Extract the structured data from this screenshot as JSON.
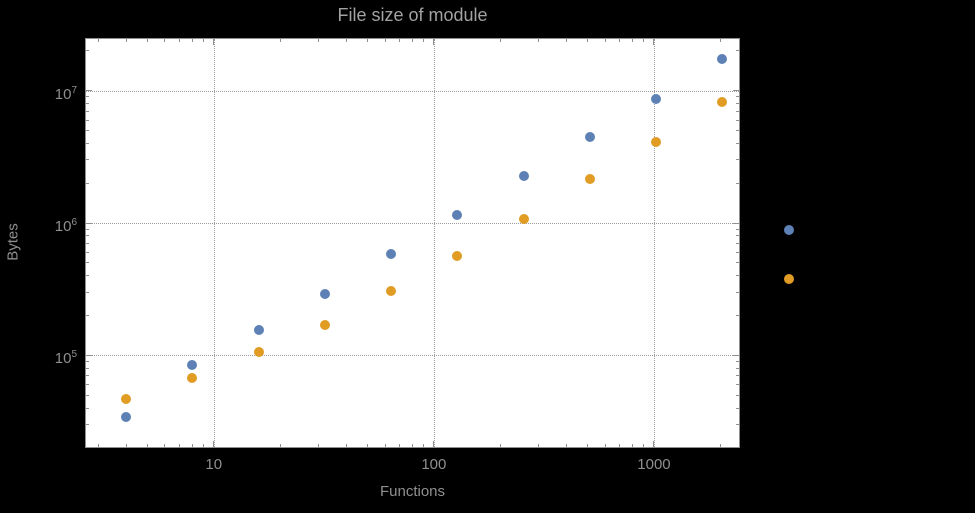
{
  "chart_data": {
    "type": "scatter",
    "title": "File size of module",
    "xlabel": "Functions",
    "ylabel": "Bytes",
    "x_scale": "log",
    "y_scale": "log",
    "xlim": [
      2.6,
      2460
    ],
    "ylim": [
      20000,
      25000000
    ],
    "grid": "dotted",
    "legend": "none",
    "x": [
      4,
      8,
      16,
      32,
      64,
      128,
      256,
      512,
      1024,
      2048,
      4096
    ],
    "series": [
      {
        "name": "series-blue",
        "color": "#5e81b5",
        "values": [
          34000,
          85000,
          155000,
          290000,
          580000,
          1150000,
          2250000,
          4500000,
          8700000,
          17500000,
          880000
        ]
      },
      {
        "name": "series-orange",
        "color": "#e19c24",
        "values": [
          47000,
          68000,
          107000,
          170000,
          305000,
          560000,
          1080000,
          2150000,
          4100000,
          8200000,
          380000
        ]
      }
    ],
    "x_ticks": [
      {
        "value": 10,
        "label": "10"
      },
      {
        "value": 100,
        "label": "100"
      },
      {
        "value": 1000,
        "label": "1000"
      }
    ],
    "y_ticks": [
      {
        "value": 100000,
        "base": "10",
        "exp": "5"
      },
      {
        "value": 1000000,
        "base": "10",
        "exp": "6"
      },
      {
        "value": 10000000,
        "base": "10",
        "exp": "7"
      }
    ],
    "colors": {
      "background": "#000000",
      "plot_background": "#ffffff",
      "frame": "#8f8f8f"
    }
  }
}
